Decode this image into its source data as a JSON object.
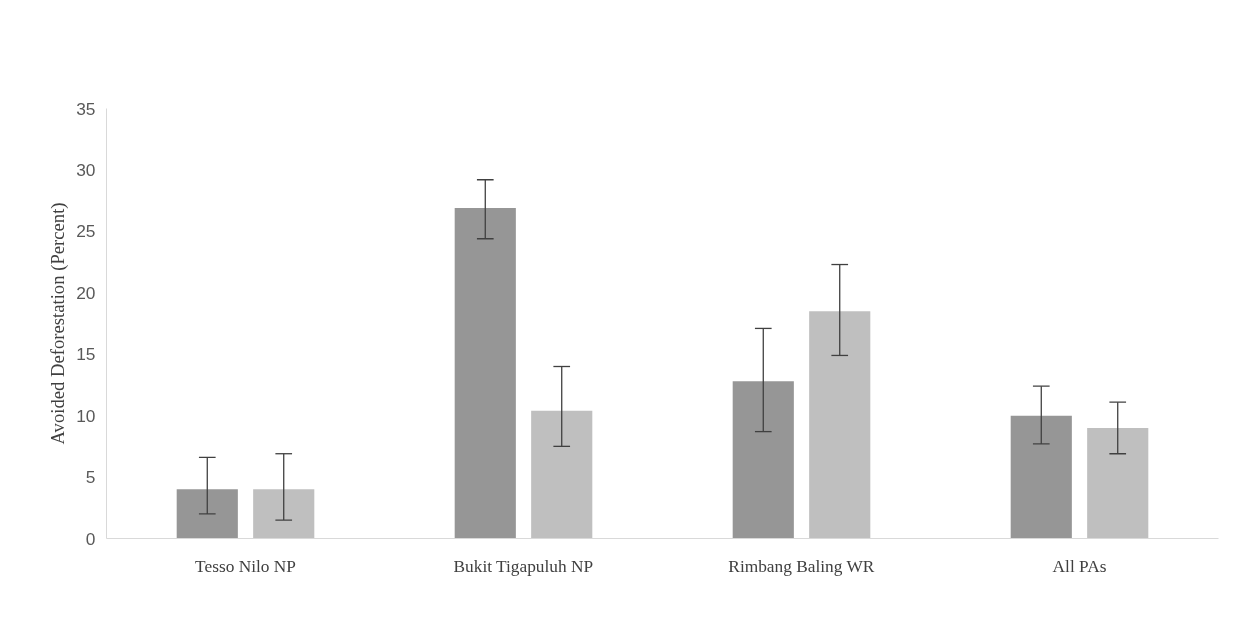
{
  "chart_data": {
    "type": "bar",
    "ylabel": "Avoided Deforestation (Percent)",
    "categories": [
      "Tesso Nilo NP",
      "Bukit Tigapuluh NP",
      "Rimbang Baling WR",
      "All PAs"
    ],
    "series": [
      {
        "color": "#969696",
        "values": [
          4.0,
          26.9,
          12.8,
          10.0
        ],
        "errors": [
          [
            2.0,
            6.6
          ],
          [
            24.4,
            29.2
          ],
          [
            8.7,
            17.1
          ],
          [
            7.7,
            12.4
          ]
        ]
      },
      {
        "color": "#bfbfbf",
        "values": [
          4.0,
          10.4,
          18.5,
          9.0
        ],
        "errors": [
          [
            1.5,
            6.9
          ],
          [
            7.5,
            14.0
          ],
          [
            14.9,
            22.3
          ],
          [
            6.9,
            11.1
          ]
        ]
      }
    ],
    "ylim": [
      0,
      35
    ],
    "yticks": [
      0,
      5,
      10,
      15,
      20,
      25,
      30,
      35
    ],
    "grid": false
  }
}
